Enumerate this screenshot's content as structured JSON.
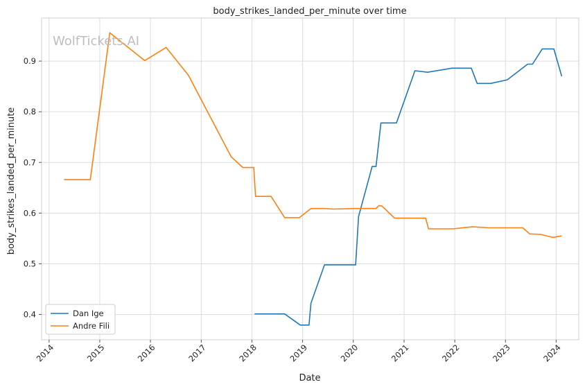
{
  "chart_data": {
    "type": "line",
    "title": "body_strikes_landed_per_minute over time",
    "xlabel": "Date",
    "ylabel": "body_strikes_landed_per_minute",
    "watermark": "WolfTickets.AI",
    "xlim": [
      "2013-11-08",
      "2024-06-12"
    ],
    "ylim": [
      0.35,
      0.985
    ],
    "grid": true,
    "legend_position": "bottom-left",
    "x_ticks": [
      "2014-01-01",
      "2015-01-01",
      "2016-01-01",
      "2017-01-01",
      "2018-01-01",
      "2019-01-01",
      "2020-01-01",
      "2021-01-01",
      "2022-01-01",
      "2023-01-01",
      "2024-01-01"
    ],
    "x_tick_labels": [
      "2014",
      "2015",
      "2016",
      "2017",
      "2018",
      "2019",
      "2020",
      "2021",
      "2022",
      "2023",
      "2024"
    ],
    "y_ticks": [
      0.4,
      0.5,
      0.6,
      0.7,
      0.8,
      0.9
    ],
    "y_tick_labels": [
      "0.4",
      "0.5",
      "0.6",
      "0.7",
      "0.8",
      "0.9"
    ],
    "series": [
      {
        "name": "Dan Ige",
        "color": "#1f77b4",
        "points": [
          [
            "2018-01-20",
            0.401
          ],
          [
            "2018-08-25",
            0.401
          ],
          [
            "2018-12-15",
            0.379
          ],
          [
            "2019-02-16",
            0.379
          ],
          [
            "2019-03-02",
            0.422
          ],
          [
            "2019-06-08",
            0.498
          ],
          [
            "2020-01-18",
            0.498
          ],
          [
            "2020-02-08",
            0.593
          ],
          [
            "2020-05-16",
            0.692
          ],
          [
            "2020-06-13",
            0.692
          ],
          [
            "2020-07-18",
            0.778
          ],
          [
            "2020-11-07",
            0.778
          ],
          [
            "2021-03-20",
            0.881
          ],
          [
            "2021-06-19",
            0.878
          ],
          [
            "2021-12-11",
            0.886
          ],
          [
            "2022-04-30",
            0.886
          ],
          [
            "2022-06-11",
            0.856
          ],
          [
            "2022-09-17",
            0.856
          ],
          [
            "2023-01-14",
            0.863
          ],
          [
            "2023-06-10",
            0.894
          ],
          [
            "2023-07-15",
            0.894
          ],
          [
            "2023-09-23",
            0.924
          ],
          [
            "2023-12-16",
            0.924
          ],
          [
            "2024-02-10",
            0.87
          ]
        ]
      },
      {
        "name": "Andre Fili",
        "color": "#ff7f0e",
        "points": [
          [
            "2014-04-19",
            0.666
          ],
          [
            "2014-10-25",
            0.666
          ],
          [
            "2015-03-14",
            0.956
          ],
          [
            "2015-11-21",
            0.901
          ],
          [
            "2016-04-23",
            0.927
          ],
          [
            "2016-10-01",
            0.872
          ],
          [
            "2017-08-05",
            0.711
          ],
          [
            "2017-10-28",
            0.69
          ],
          [
            "2018-01-14",
            0.69
          ],
          [
            "2018-01-27",
            0.633
          ],
          [
            "2018-05-19",
            0.633
          ],
          [
            "2018-08-25",
            0.591
          ],
          [
            "2018-12-08",
            0.591
          ],
          [
            "2019-03-02",
            0.609
          ],
          [
            "2019-06-08",
            0.609
          ],
          [
            "2019-08-10",
            0.608
          ],
          [
            "2020-01-25",
            0.609
          ],
          [
            "2020-06-13",
            0.609
          ],
          [
            "2020-07-04",
            0.615
          ],
          [
            "2020-07-25",
            0.614
          ],
          [
            "2020-10-24",
            0.59
          ],
          [
            "2021-06-05",
            0.59
          ],
          [
            "2021-06-26",
            0.569
          ],
          [
            "2021-12-18",
            0.569
          ],
          [
            "2022-05-07",
            0.573
          ],
          [
            "2022-09-03",
            0.571
          ],
          [
            "2023-05-06",
            0.571
          ],
          [
            "2023-06-24",
            0.559
          ],
          [
            "2023-09-09",
            0.558
          ],
          [
            "2023-12-09",
            0.552
          ],
          [
            "2024-02-10",
            0.555
          ]
        ]
      }
    ]
  }
}
